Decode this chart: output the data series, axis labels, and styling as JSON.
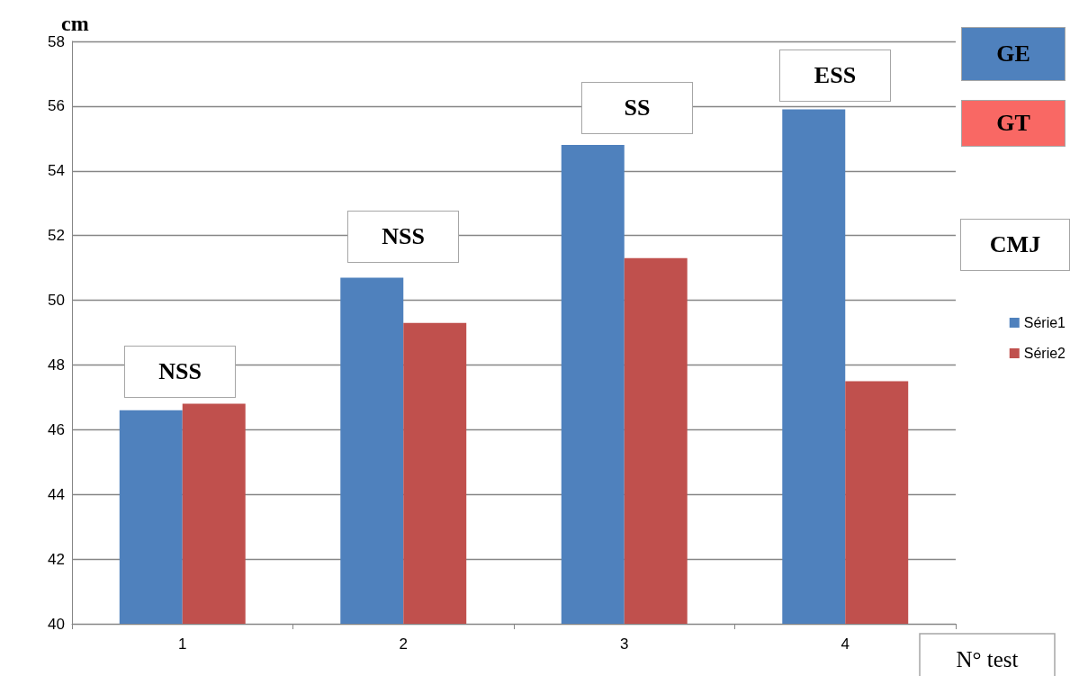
{
  "chart_data": {
    "type": "bar",
    "ylabel": "cm",
    "xlabel": "N° test",
    "categories": [
      "1",
      "2",
      "3",
      "4"
    ],
    "series": [
      {
        "name": "Série1",
        "color": "#4f81bd",
        "values": [
          46.6,
          50.7,
          54.8,
          55.9
        ]
      },
      {
        "name": "Série2",
        "color": "#c0504d",
        "values": [
          46.8,
          49.3,
          51.3,
          47.5
        ]
      }
    ],
    "ylim": [
      40,
      58
    ],
    "yticks": [
      40,
      42,
      44,
      46,
      48,
      50,
      52,
      54,
      56,
      58
    ],
    "grid": "y",
    "legend": "right",
    "annotations": [
      "NSS",
      "NSS",
      "SS",
      "ESS",
      "GE",
      "GT",
      "CMJ"
    ]
  }
}
